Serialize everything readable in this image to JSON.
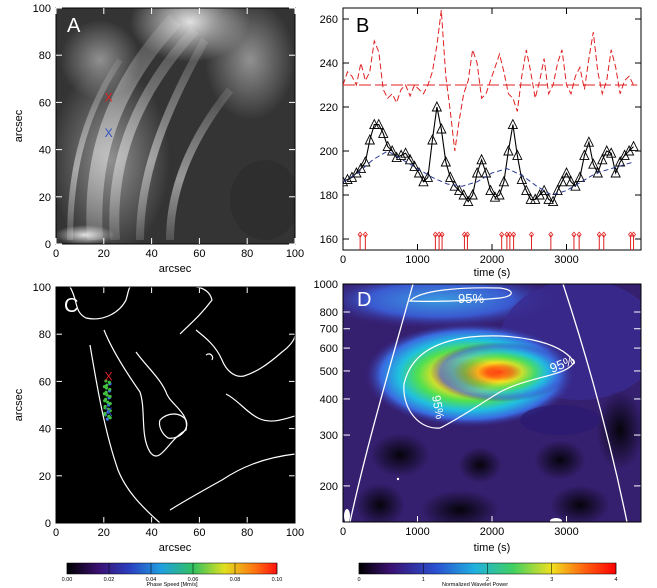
{
  "panels": {
    "A": {
      "label": "A",
      "xlabel": "arcsec",
      "ylabel": "arcsec",
      "xticks": [
        "0",
        "20",
        "40",
        "60",
        "80",
        "100"
      ],
      "yticks": [
        "0",
        "20",
        "40",
        "60",
        "80",
        "100"
      ],
      "markers": [
        {
          "text": "X",
          "color": "#e02020",
          "x": 22,
          "y": 62
        },
        {
          "text": "X",
          "color": "#3050c0",
          "x": 22,
          "y": 47
        }
      ]
    },
    "B": {
      "label": "B",
      "xlabel": "time (s)",
      "ylabel": "",
      "xticks": [
        "0",
        "1000",
        "2000",
        "3000"
      ],
      "yticks": [
        "160",
        "180",
        "200",
        "220",
        "240",
        "260"
      ]
    },
    "C": {
      "label": "C",
      "xlabel": "arcsec",
      "ylabel": "arcsec",
      "xticks": [
        "0",
        "20",
        "40",
        "60",
        "80",
        "100"
      ],
      "yticks": [
        "0",
        "20",
        "40",
        "60",
        "80",
        "100"
      ],
      "markers": [
        {
          "text": "X",
          "color": "#e02020",
          "x": 22,
          "y": 62
        },
        {
          "text": "X",
          "color": "#3050c0",
          "x": 22,
          "y": 47
        }
      ],
      "colorbar": {
        "title": "Phase Speed [Mm/s]",
        "ticks": [
          "0.00",
          "0.02",
          "0.04",
          "0.06",
          "0.08",
          "0.10"
        ]
      }
    },
    "D": {
      "label": "D",
      "xlabel": "time (s)",
      "ylabel": "",
      "xticks": [
        "0",
        "1000",
        "2000",
        "3000"
      ],
      "yticks": [
        "1000",
        "800",
        "700",
        "600",
        "500",
        "400",
        "300",
        "200"
      ],
      "contour_labels": [
        "95%",
        "95%",
        "95%"
      ],
      "colorbar": {
        "title": "Normalized Wavelet Power",
        "ticks": [
          "0",
          "1",
          "2",
          "3",
          "4"
        ]
      }
    }
  },
  "chart_data": [
    {
      "type": "image",
      "panel": "A",
      "xlim": [
        0,
        100
      ],
      "ylim": [
        0,
        100
      ]
    },
    {
      "type": "line",
      "panel": "B",
      "xlim": [
        0,
        4000
      ],
      "ylim": [
        155,
        265
      ],
      "series": [
        {
          "style": "black-line-triangles",
          "x": [
            0,
            60,
            120,
            180,
            240,
            300,
            360,
            420,
            480,
            540,
            600,
            660,
            720,
            780,
            840,
            900,
            960,
            1020,
            1080,
            1140,
            1200,
            1260,
            1320,
            1380,
            1440,
            1500,
            1560,
            1620,
            1680,
            1740,
            1800,
            1860,
            1920,
            1980,
            2040,
            2100,
            2160,
            2220,
            2280,
            2340,
            2400,
            2460,
            2520,
            2580,
            2640,
            2700,
            2760,
            2820,
            2880,
            2940,
            3000,
            3060,
            3120,
            3180,
            3240,
            3300,
            3360,
            3420,
            3480,
            3540,
            3600,
            3660,
            3720,
            3780,
            3840,
            3900
          ],
          "values": [
            186,
            187,
            188,
            190,
            192,
            195,
            205,
            212,
            212,
            208,
            202,
            200,
            197,
            198,
            199,
            196,
            193,
            190,
            186,
            188,
            205,
            220,
            210,
            195,
            188,
            184,
            182,
            180,
            177,
            180,
            190,
            196,
            190,
            182,
            179,
            180,
            186,
            200,
            212,
            198,
            187,
            182,
            178,
            178,
            180,
            182,
            178,
            177,
            182,
            186,
            190,
            186,
            184,
            188,
            198,
            204,
            194,
            190,
            196,
            200,
            199,
            190,
            195,
            198,
            200,
            202
          ]
        },
        {
          "style": "blue-dashed",
          "x": [
            0,
            200,
            400,
            600,
            800,
            1000,
            1200,
            1400,
            1600,
            1800,
            2000,
            2200,
            2400,
            2600,
            2800,
            3000,
            3200,
            3400,
            3600,
            3800,
            3900
          ],
          "values": [
            186,
            190,
            196,
            200,
            196,
            192,
            188,
            185,
            184,
            186,
            190,
            192,
            189,
            184,
            180,
            182,
            186,
            190,
            192,
            194,
            195
          ]
        },
        {
          "style": "red-dashed",
          "x": [
            0,
            60,
            120,
            180,
            240,
            300,
            360,
            420,
            480,
            540,
            600,
            660,
            720,
            780,
            840,
            900,
            960,
            1020,
            1080,
            1140,
            1200,
            1260,
            1320,
            1380,
            1440,
            1500,
            1560,
            1620,
            1680,
            1740,
            1800,
            1860,
            1920,
            1980,
            2040,
            2100,
            2160,
            2220,
            2280,
            2340,
            2400,
            2460,
            2520,
            2580,
            2640,
            2700,
            2760,
            2820,
            2880,
            2940,
            3000,
            3060,
            3120,
            3180,
            3240,
            3300,
            3360,
            3420,
            3480,
            3540,
            3600,
            3660,
            3720,
            3780,
            3840,
            3900
          ],
          "values": [
            230,
            236,
            234,
            230,
            240,
            232,
            236,
            250,
            245,
            228,
            224,
            226,
            222,
            228,
            230,
            225,
            230,
            228,
            226,
            230,
            236,
            248,
            264,
            234,
            218,
            200,
            214,
            226,
            232,
            246,
            240,
            224,
            226,
            232,
            238,
            244,
            236,
            226,
            224,
            218,
            234,
            246,
            236,
            224,
            232,
            242,
            226,
            230,
            240,
            246,
            230,
            226,
            234,
            238,
            228,
            242,
            254,
            236,
            226,
            232,
            246,
            238,
            226,
            232,
            234,
            230
          ]
        },
        {
          "style": "red-dashed-flat",
          "x": [
            0,
            3950
          ],
          "values": [
            230,
            230
          ]
        }
      ],
      "markers_x": [
        230,
        300,
        1240,
        1290,
        1330,
        1630,
        1670,
        2130,
        2200,
        2240,
        2290,
        2530,
        2790,
        3100,
        3170,
        3440,
        3500,
        3860,
        3900
      ]
    },
    {
      "type": "image",
      "panel": "C",
      "xlim": [
        0,
        100
      ],
      "ylim": [
        0,
        100
      ]
    },
    {
      "type": "heatmap",
      "panel": "D",
      "xlim": [
        0,
        4000
      ],
      "ylim": [
        150,
        1000
      ],
      "yscale": "log"
    }
  ],
  "colors": {
    "red": "#e02020",
    "blue": "#3050c0",
    "black": "#000000"
  }
}
